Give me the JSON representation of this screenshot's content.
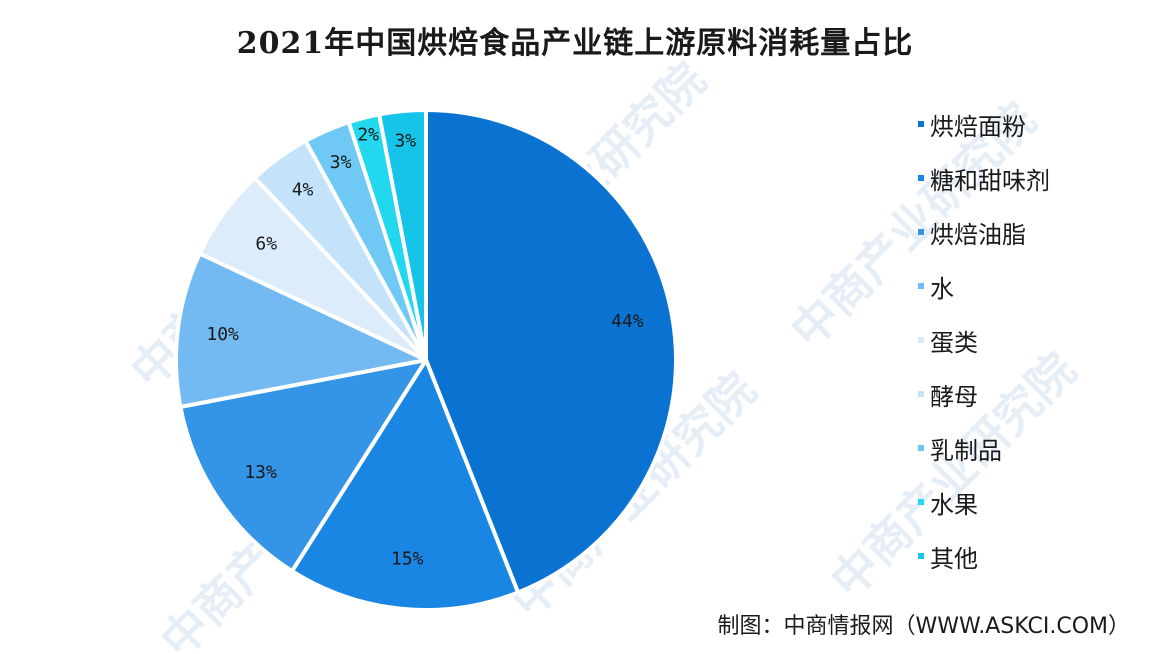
{
  "chart_data": {
    "type": "pie",
    "title": "2021年中国烘焙食品产业链上游原料消耗量占比",
    "categories": [
      "烘焙面粉",
      "糖和甜味剂",
      "烘焙油脂",
      "水",
      "蛋类",
      "酵母",
      "乳制品",
      "水果",
      "其他"
    ],
    "values": [
      44,
      15,
      13,
      10,
      6,
      4,
      3,
      2,
      3
    ],
    "value_labels": [
      "44%",
      "15%",
      "13%",
      "10%",
      "6%",
      "4%",
      "3%",
      "2%",
      "3%"
    ],
    "colors": [
      "#0a73d2",
      "#1a86e3",
      "#3495e6",
      "#73b9f2",
      "#ddecfb",
      "#c4e3fb",
      "#70c8f4",
      "#22d8ee",
      "#15c4e8"
    ],
    "legend_position": "right",
    "start": "12 o'clock",
    "direction": "clockwise"
  },
  "source": "制图：中商情报网（WWW.ASKCI.COM）",
  "watermark": "中商产业研究院"
}
